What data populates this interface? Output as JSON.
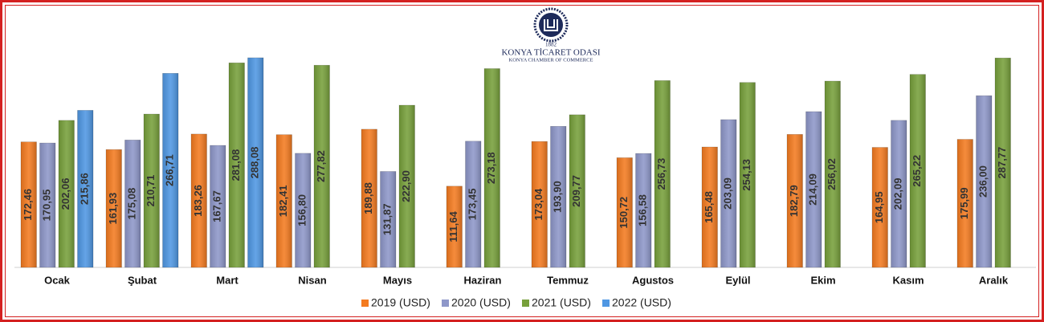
{
  "logo": {
    "year": "1882",
    "name": "KONYA TİCARET ODASI",
    "subtitle": "KONYA CHAMBER OF COMMERCE"
  },
  "chart_data": {
    "type": "bar",
    "categories": [
      "Ocak",
      "Şubat",
      "Mart",
      "Nisan",
      "Mayıs",
      "Haziran",
      "Temmuz",
      "Agustos",
      "Eylül",
      "Ekim",
      "Kasım",
      "Aralık"
    ],
    "series": [
      {
        "name": "2019 (USD)",
        "color": "#f47b20",
        "values": [
          172.46,
          161.93,
          183.26,
          182.41,
          189.88,
          111.64,
          173.04,
          150.72,
          165.48,
          182.79,
          164.95,
          175.99
        ],
        "value_labels": [
          "172,46",
          "161,93",
          "183,26",
          "182,41",
          "189,88",
          "111,64",
          "173,04",
          "150,72",
          "165,48",
          "182,79",
          "164,95",
          "175,99"
        ]
      },
      {
        "name": "2020 (USD)",
        "color": "#8e97c9",
        "values": [
          170.95,
          175.08,
          167.67,
          156.8,
          131.87,
          173.45,
          193.9,
          156.58,
          203.09,
          214.09,
          202.09,
          236.0
        ],
        "value_labels": [
          "170,95",
          "175,08",
          "167,67",
          "156,80",
          "131,87",
          "173,45",
          "193,90",
          "156,58",
          "203,09",
          "214,09",
          "202,09",
          "236,00"
        ]
      },
      {
        "name": "2021 (USD)",
        "color": "#77a03b",
        "values": [
          202.06,
          210.71,
          281.08,
          277.82,
          222.9,
          273.18,
          209.77,
          256.73,
          254.13,
          256.02,
          265.22,
          287.77
        ],
        "value_labels": [
          "202,06",
          "210,71",
          "281,08",
          "277,82",
          "222,90",
          "273,18",
          "209,77",
          "256,73",
          "254,13",
          "256,02",
          "265,22",
          "287,77"
        ]
      },
      {
        "name": "2022 (USD)",
        "color": "#4f97e3",
        "values": [
          215.86,
          266.71,
          288.08,
          null,
          null,
          null,
          null,
          null,
          null,
          null,
          null,
          null
        ],
        "value_labels": [
          "215,86",
          "266,71",
          "288,08",
          null,
          null,
          null,
          null,
          null,
          null,
          null,
          null,
          null
        ]
      }
    ],
    "ylim": [
      0,
      320
    ],
    "grid": false
  }
}
